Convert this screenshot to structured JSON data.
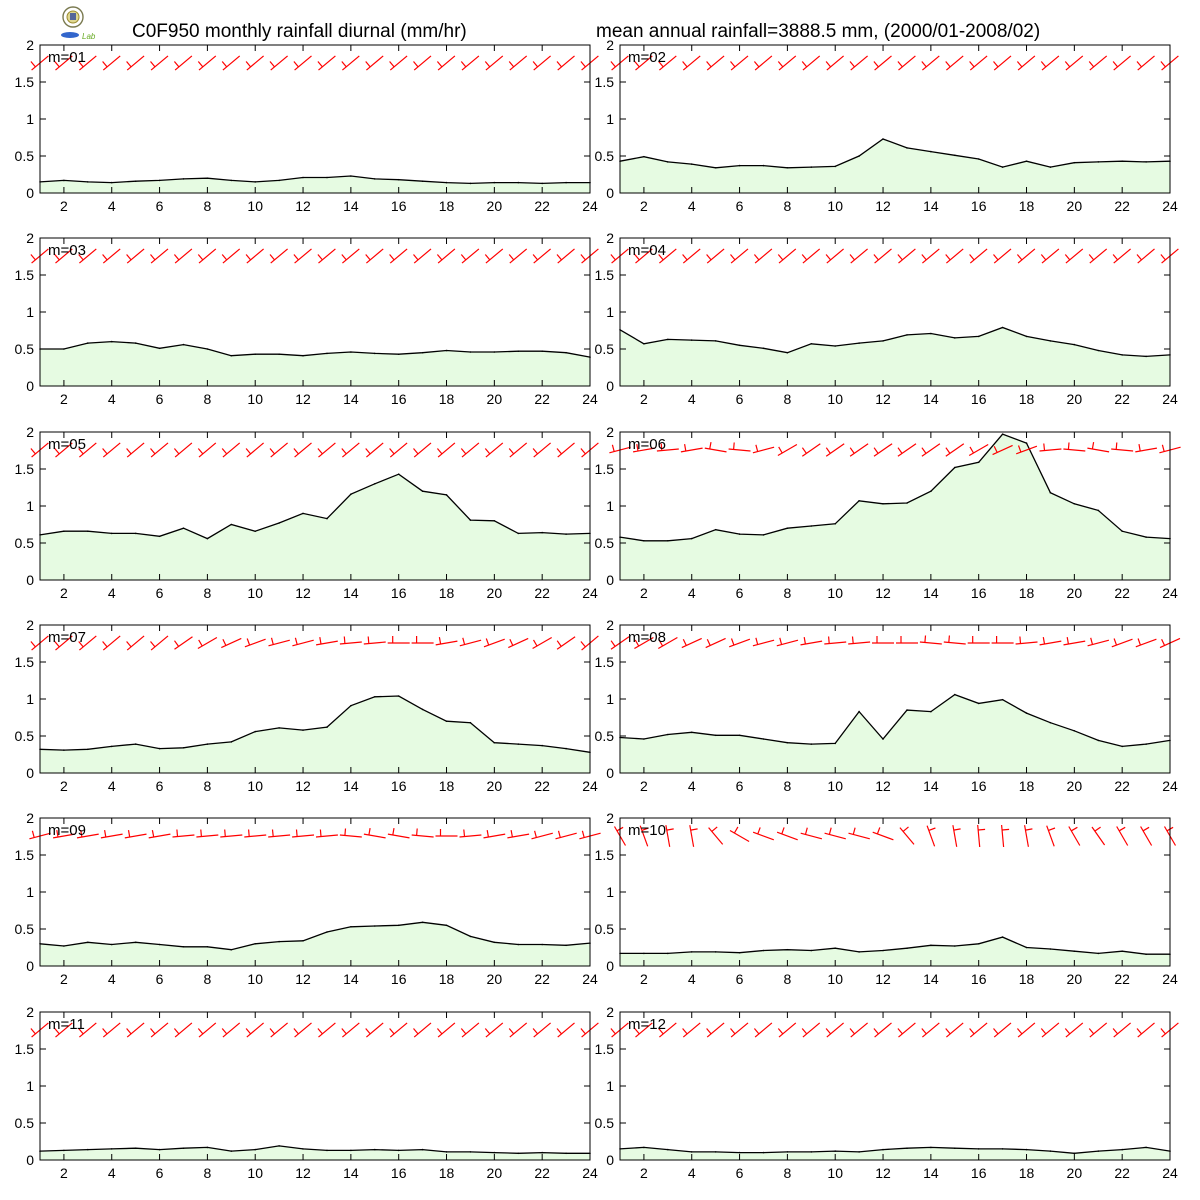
{
  "header": {
    "title_left": "C0F950 monthly rainfall diurnal (mm/hr)",
    "title_right": "mean annual rainfall=3888.5 mm, (2000/01-2008/02)",
    "logo_text": "Lab"
  },
  "colors": {
    "fill": "#e6fbe2",
    "line": "#000000",
    "wind": "#ff0000",
    "frame": "#000000"
  },
  "chart_data": {
    "type": "area",
    "series_type_note": "monthly panels with rainfall area and wind barbs",
    "x": [
      1,
      2,
      3,
      4,
      5,
      6,
      7,
      8,
      9,
      10,
      11,
      12,
      13,
      14,
      15,
      16,
      17,
      18,
      19,
      20,
      21,
      22,
      23,
      24
    ],
    "x_ticks": [
      "2",
      "4",
      "6",
      "8",
      "10",
      "12",
      "14",
      "16",
      "18",
      "20",
      "22",
      "24"
    ],
    "y_ticks": [
      "0",
      "0.5",
      "1",
      "1.5",
      "2"
    ],
    "xlim": [
      1,
      24
    ],
    "ylim": [
      0,
      2
    ],
    "panels": [
      {
        "label": "m=01",
        "values": [
          0.15,
          0.17,
          0.15,
          0.14,
          0.16,
          0.17,
          0.19,
          0.2,
          0.17,
          0.15,
          0.17,
          0.21,
          0.21,
          0.23,
          0.19,
          0.18,
          0.16,
          0.14,
          0.13,
          0.14,
          0.14,
          0.13,
          0.14,
          0.14
        ],
        "wind_angles": [
          -40,
          -40,
          -40,
          -40,
          -40,
          -40,
          -40,
          -40,
          -40,
          -40,
          -40,
          -40,
          -40,
          -40,
          -40,
          -40,
          -40,
          -40,
          -40,
          -40,
          -40,
          -40,
          -40,
          -40
        ]
      },
      {
        "label": "m=02",
        "values": [
          0.43,
          0.49,
          0.42,
          0.39,
          0.34,
          0.37,
          0.37,
          0.34,
          0.35,
          0.36,
          0.5,
          0.73,
          0.61,
          0.56,
          0.51,
          0.46,
          0.35,
          0.43,
          0.35,
          0.41,
          0.42,
          0.43,
          0.42,
          0.43
        ],
        "wind_angles": [
          -40,
          -40,
          -40,
          -40,
          -40,
          -40,
          -40,
          -40,
          -40,
          -40,
          -40,
          -40,
          -40,
          -40,
          -40,
          -40,
          -40,
          -40,
          -40,
          -40,
          -40,
          -40,
          -40,
          -40
        ]
      },
      {
        "label": "m=03",
        "values": [
          0.5,
          0.5,
          0.58,
          0.6,
          0.58,
          0.51,
          0.56,
          0.5,
          0.41,
          0.43,
          0.43,
          0.41,
          0.44,
          0.46,
          0.44,
          0.43,
          0.45,
          0.48,
          0.46,
          0.46,
          0.47,
          0.47,
          0.45,
          0.39
        ],
        "wind_angles": [
          -40,
          -40,
          -40,
          -40,
          -40,
          -40,
          -40,
          -40,
          -40,
          -40,
          -40,
          -40,
          -40,
          -40,
          -40,
          -40,
          -40,
          -40,
          -40,
          -40,
          -40,
          -40,
          -40,
          -40
        ]
      },
      {
        "label": "m=04",
        "values": [
          0.76,
          0.57,
          0.63,
          0.62,
          0.61,
          0.55,
          0.51,
          0.45,
          0.57,
          0.54,
          0.58,
          0.61,
          0.69,
          0.71,
          0.65,
          0.67,
          0.79,
          0.67,
          0.61,
          0.56,
          0.48,
          0.42,
          0.4,
          0.42
        ],
        "wind_angles": [
          -40,
          -40,
          -40,
          -40,
          -40,
          -40,
          -40,
          -40,
          -40,
          -40,
          -40,
          -40,
          -40,
          -40,
          -40,
          -40,
          -40,
          -40,
          -40,
          -40,
          -40,
          -40,
          -40,
          -40
        ]
      },
      {
        "label": "m=05",
        "values": [
          0.61,
          0.66,
          0.66,
          0.63,
          0.63,
          0.59,
          0.7,
          0.56,
          0.75,
          0.66,
          0.77,
          0.9,
          0.83,
          1.16,
          1.3,
          1.43,
          1.2,
          1.15,
          0.81,
          0.8,
          0.63,
          0.64,
          0.62,
          0.63
        ],
        "wind_angles": [
          -40,
          -40,
          -40,
          -40,
          -40,
          -40,
          -40,
          -40,
          -40,
          -40,
          -40,
          -40,
          -40,
          -40,
          -40,
          -40,
          -40,
          -40,
          -40,
          -40,
          -40,
          -40,
          -40,
          -40
        ]
      },
      {
        "label": "m=06",
        "values": [
          0.58,
          0.53,
          0.53,
          0.56,
          0.68,
          0.62,
          0.61,
          0.7,
          0.73,
          0.76,
          1.07,
          1.03,
          1.04,
          1.2,
          1.52,
          1.59,
          1.97,
          1.85,
          1.18,
          1.03,
          0.94,
          0.66,
          0.58,
          0.56
        ],
        "wind_angles": [
          -15,
          -10,
          -5,
          -10,
          10,
          5,
          -15,
          -30,
          -35,
          -35,
          -35,
          -35,
          -35,
          -35,
          -35,
          -30,
          -25,
          -20,
          -5,
          5,
          10,
          5,
          -10,
          -15
        ]
      },
      {
        "label": "m=07",
        "values": [
          0.32,
          0.31,
          0.32,
          0.36,
          0.39,
          0.33,
          0.34,
          0.39,
          0.42,
          0.56,
          0.61,
          0.58,
          0.62,
          0.91,
          1.03,
          1.04,
          0.86,
          0.7,
          0.68,
          0.41,
          0.39,
          0.37,
          0.33,
          0.28
        ],
        "wind_angles": [
          -40,
          -40,
          -40,
          -40,
          -40,
          -40,
          -35,
          -30,
          -25,
          -20,
          -15,
          -15,
          -10,
          -5,
          -5,
          0,
          0,
          -10,
          -15,
          -20,
          -25,
          -30,
          -35,
          -40
        ]
      },
      {
        "label": "m=08",
        "values": [
          0.48,
          0.46,
          0.52,
          0.55,
          0.51,
          0.51,
          0.46,
          0.41,
          0.39,
          0.4,
          0.83,
          0.46,
          0.85,
          0.83,
          1.06,
          0.94,
          0.99,
          0.81,
          0.68,
          0.57,
          0.44,
          0.36,
          0.39,
          0.44
        ],
        "wind_angles": [
          -35,
          -30,
          -30,
          -25,
          -25,
          -20,
          -15,
          -15,
          -10,
          -5,
          -5,
          0,
          0,
          5,
          5,
          0,
          0,
          -5,
          -10,
          -10,
          -15,
          -20,
          -20,
          -25
        ]
      },
      {
        "label": "m=09",
        "values": [
          0.3,
          0.27,
          0.32,
          0.29,
          0.32,
          0.29,
          0.26,
          0.26,
          0.22,
          0.3,
          0.33,
          0.34,
          0.46,
          0.53,
          0.54,
          0.55,
          0.59,
          0.55,
          0.4,
          0.32,
          0.29,
          0.29,
          0.28,
          0.31
        ],
        "wind_angles": [
          -15,
          -10,
          -10,
          -10,
          -10,
          -10,
          -5,
          -5,
          -5,
          -5,
          -5,
          -5,
          -5,
          5,
          10,
          10,
          5,
          0,
          -5,
          -10,
          -10,
          -15,
          -15,
          -15
        ]
      },
      {
        "label": "m=10",
        "values": [
          0.17,
          0.17,
          0.17,
          0.19,
          0.19,
          0.18,
          0.21,
          0.22,
          0.21,
          0.24,
          0.19,
          0.21,
          0.24,
          0.28,
          0.27,
          0.3,
          0.39,
          0.25,
          0.23,
          0.2,
          0.17,
          0.2,
          0.16,
          0.16
        ],
        "wind_angles": [
          60,
          70,
          80,
          80,
          50,
          30,
          20,
          20,
          15,
          15,
          15,
          20,
          50,
          70,
          80,
          85,
          85,
          80,
          70,
          60,
          55,
          60,
          60,
          60
        ]
      },
      {
        "label": "m=11",
        "values": [
          0.12,
          0.13,
          0.14,
          0.15,
          0.16,
          0.14,
          0.16,
          0.17,
          0.12,
          0.14,
          0.19,
          0.15,
          0.13,
          0.13,
          0.14,
          0.13,
          0.14,
          0.11,
          0.11,
          0.1,
          0.09,
          0.1,
          0.09,
          0.09
        ],
        "wind_angles": [
          -40,
          -40,
          -40,
          -40,
          -40,
          -40,
          -40,
          -40,
          -40,
          -40,
          -40,
          -40,
          -40,
          -40,
          -40,
          -40,
          -40,
          -40,
          -40,
          -40,
          -40,
          -40,
          -40,
          -40
        ]
      },
      {
        "label": "m=12",
        "values": [
          0.15,
          0.17,
          0.14,
          0.11,
          0.11,
          0.1,
          0.1,
          0.11,
          0.11,
          0.12,
          0.11,
          0.14,
          0.16,
          0.17,
          0.16,
          0.15,
          0.15,
          0.14,
          0.12,
          0.09,
          0.12,
          0.14,
          0.17,
          0.12
        ],
        "wind_angles": [
          -40,
          -40,
          -40,
          -40,
          -40,
          -40,
          -40,
          -40,
          -40,
          -40,
          -40,
          -40,
          -40,
          -40,
          -40,
          -40,
          -40,
          -40,
          -40,
          -40,
          -40,
          -40,
          -40,
          -40
        ]
      }
    ]
  }
}
